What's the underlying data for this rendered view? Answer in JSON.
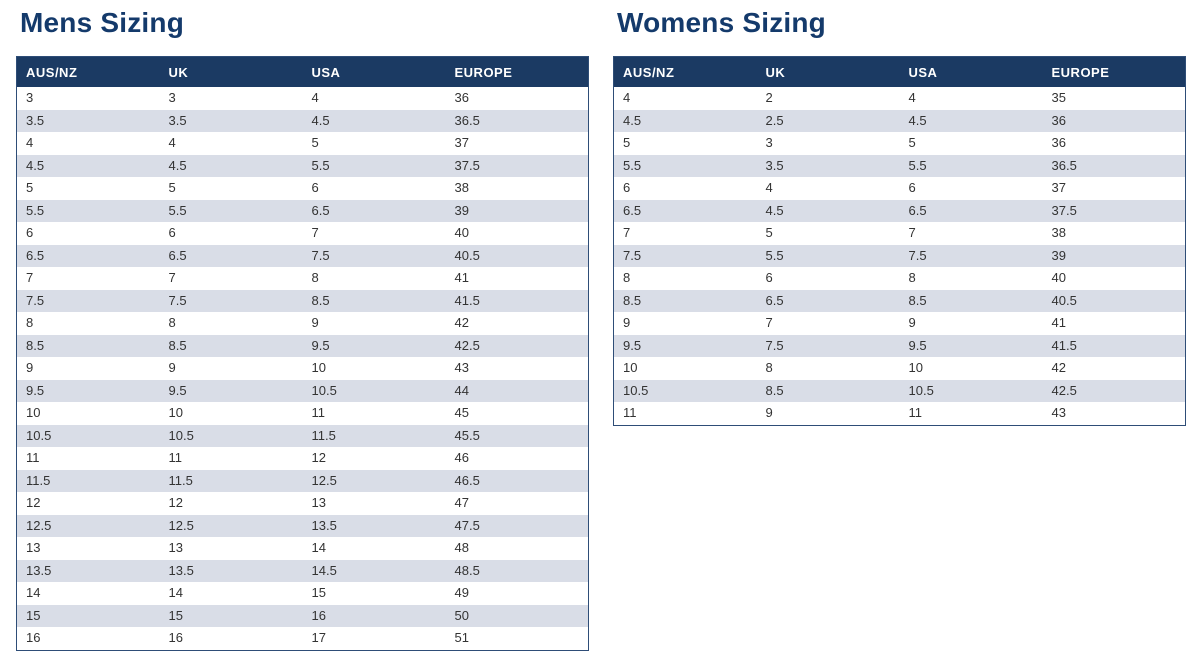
{
  "colors": {
    "title_text": "#143a6b",
    "header_bg": "#1b3a63",
    "header_text": "#ffffff",
    "stripe_row_bg": "#d9dde7",
    "row_text": "#333333",
    "table_border": "#2e4d77"
  },
  "tables": [
    {
      "id": "mens",
      "title": "Mens Sizing",
      "headers": [
        "AUS/NZ",
        "UK",
        "USA",
        "EUROPE"
      ],
      "rows": [
        [
          "3",
          "3",
          "4",
          "36"
        ],
        [
          "3.5",
          "3.5",
          "4.5",
          "36.5"
        ],
        [
          "4",
          "4",
          "5",
          "37"
        ],
        [
          "4.5",
          "4.5",
          "5.5",
          "37.5"
        ],
        [
          "5",
          "5",
          "6",
          "38"
        ],
        [
          "5.5",
          "5.5",
          "6.5",
          "39"
        ],
        [
          "6",
          "6",
          "7",
          "40"
        ],
        [
          "6.5",
          "6.5",
          "7.5",
          "40.5"
        ],
        [
          "7",
          "7",
          "8",
          "41"
        ],
        [
          "7.5",
          "7.5",
          "8.5",
          "41.5"
        ],
        [
          "8",
          "8",
          "9",
          "42"
        ],
        [
          "8.5",
          "8.5",
          "9.5",
          "42.5"
        ],
        [
          "9",
          "9",
          "10",
          "43"
        ],
        [
          "9.5",
          "9.5",
          "10.5",
          "44"
        ],
        [
          "10",
          "10",
          "11",
          "45"
        ],
        [
          "10.5",
          "10.5",
          "11.5",
          "45.5"
        ],
        [
          "11",
          "11",
          "12",
          "46"
        ],
        [
          "11.5",
          "11.5",
          "12.5",
          "46.5"
        ],
        [
          "12",
          "12",
          "13",
          "47"
        ],
        [
          "12.5",
          "12.5",
          "13.5",
          "47.5"
        ],
        [
          "13",
          "13",
          "14",
          "48"
        ],
        [
          "13.5",
          "13.5",
          "14.5",
          "48.5"
        ],
        [
          "14",
          "14",
          "15",
          "49"
        ],
        [
          "15",
          "15",
          "16",
          "50"
        ],
        [
          "16",
          "16",
          "17",
          "51"
        ]
      ]
    },
    {
      "id": "womens",
      "title": "Womens Sizing",
      "headers": [
        "AUS/NZ",
        "UK",
        "USA",
        "EUROPE"
      ],
      "rows": [
        [
          "4",
          "2",
          "4",
          "35"
        ],
        [
          "4.5",
          "2.5",
          "4.5",
          "36"
        ],
        [
          "5",
          "3",
          "5",
          "36"
        ],
        [
          "5.5",
          "3.5",
          "5.5",
          "36.5"
        ],
        [
          "6",
          "4",
          "6",
          "37"
        ],
        [
          "6.5",
          "4.5",
          "6.5",
          "37.5"
        ],
        [
          "7",
          "5",
          "7",
          "38"
        ],
        [
          "7.5",
          "5.5",
          "7.5",
          "39"
        ],
        [
          "8",
          "6",
          "8",
          "40"
        ],
        [
          "8.5",
          "6.5",
          "8.5",
          "40.5"
        ],
        [
          "9",
          "7",
          "9",
          "41"
        ],
        [
          "9.5",
          "7.5",
          "9.5",
          "41.5"
        ],
        [
          "10",
          "8",
          "10",
          "42"
        ],
        [
          "10.5",
          "8.5",
          "10.5",
          "42.5"
        ],
        [
          "11",
          "9",
          "11",
          "43"
        ]
      ]
    }
  ]
}
